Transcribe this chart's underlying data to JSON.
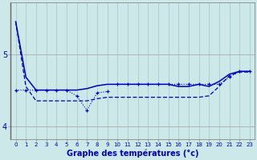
{
  "xlabel": "Graphe des températures (°c)",
  "background_color": "#cce8e8",
  "grid_color_v": "#aacccc",
  "grid_color_h": "#aaaaaa",
  "line_color": "#0000bb",
  "x": [
    0,
    1,
    2,
    3,
    4,
    5,
    6,
    7,
    8,
    9,
    10,
    11,
    12,
    13,
    14,
    15,
    16,
    17,
    18,
    19,
    20,
    21,
    22,
    23
  ],
  "line_top": [
    5.45,
    4.55,
    4.35,
    4.35,
    4.35,
    4.35,
    4.35,
    4.35,
    4.38,
    4.4,
    4.4,
    4.4,
    4.4,
    4.4,
    4.4,
    4.4,
    4.4,
    4.4,
    4.4,
    4.42,
    4.55,
    4.7,
    4.75,
    4.75
  ],
  "line_mid": [
    5.45,
    4.68,
    4.5,
    4.5,
    4.5,
    4.5,
    4.5,
    4.52,
    4.56,
    4.58,
    4.58,
    4.58,
    4.58,
    4.58,
    4.58,
    4.58,
    4.55,
    4.55,
    4.58,
    4.55,
    4.62,
    4.72,
    4.76,
    4.76
  ],
  "line_dot_left_x": [
    0,
    1,
    2,
    3,
    4,
    5,
    6,
    7,
    8,
    9
  ],
  "line_dot_left_y": [
    4.5,
    4.5,
    4.5,
    4.5,
    4.5,
    4.5,
    4.42,
    4.22,
    4.46,
    4.48
  ],
  "line_dot_right_x": [
    10,
    11,
    12,
    13,
    14,
    15,
    16,
    17,
    18,
    19,
    20,
    21,
    22,
    23
  ],
  "line_dot_right_y": [
    4.58,
    4.58,
    4.58,
    4.58,
    4.58,
    4.58,
    4.58,
    4.58,
    4.58,
    4.58,
    4.58,
    4.68,
    4.76,
    4.76
  ],
  "ylim": [
    3.82,
    5.72
  ],
  "ytick_vals": [
    4.0,
    5.0
  ],
  "ytick_labels": [
    "4",
    "5"
  ],
  "xticks": [
    0,
    1,
    2,
    3,
    4,
    5,
    6,
    7,
    8,
    9,
    10,
    11,
    12,
    13,
    14,
    15,
    16,
    17,
    18,
    19,
    20,
    21,
    22,
    23
  ],
  "xlabel_fontsize": 7,
  "ytick_fontsize": 7,
  "xtick_fontsize": 5
}
